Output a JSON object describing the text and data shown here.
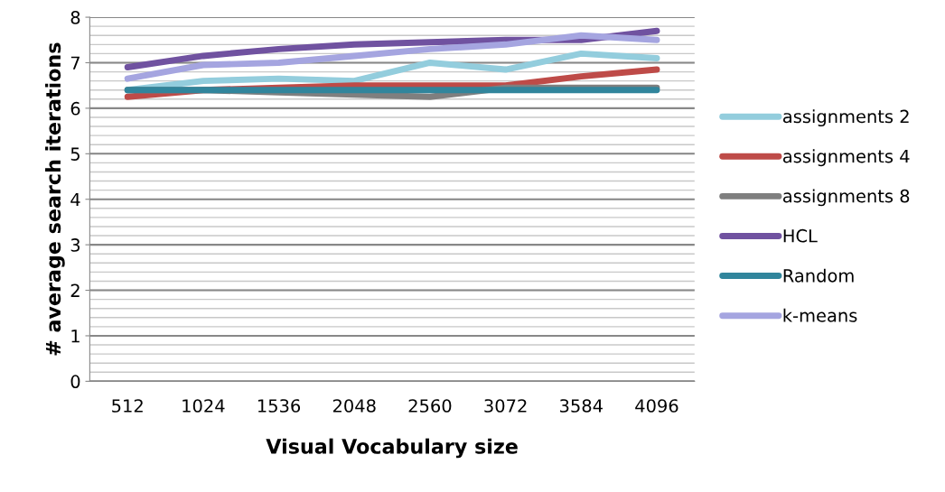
{
  "chart_data": {
    "type": "line",
    "xlabel": "Visual Vocabulary size",
    "ylabel": "# average search iterations",
    "categories": [
      "512",
      "1024",
      "1536",
      "2048",
      "2560",
      "3072",
      "3584",
      "4096"
    ],
    "ylim": [
      0,
      8
    ],
    "yticks": [
      0,
      1,
      2,
      3,
      4,
      5,
      6,
      7,
      8
    ],
    "grid": "y",
    "legend": "right",
    "marker": "none",
    "line_style": "solid",
    "series": [
      {
        "name": "assignments 2",
        "color": "#93cddd",
        "values": [
          6.4,
          6.6,
          6.65,
          6.6,
          7.0,
          6.85,
          7.2,
          7.1
        ]
      },
      {
        "name": "assignments 4",
        "color": "#be4b48",
        "values": [
          6.25,
          6.4,
          6.45,
          6.5,
          6.5,
          6.5,
          6.7,
          6.85
        ]
      },
      {
        "name": "assignments 8",
        "color": "#7f7f7f",
        "values": [
          6.4,
          6.4,
          6.35,
          6.3,
          6.25,
          6.45,
          6.45,
          6.45
        ]
      },
      {
        "name": "HCL",
        "color": "#7052a0",
        "values": [
          6.9,
          7.15,
          7.3,
          7.4,
          7.45,
          7.5,
          7.5,
          7.7
        ]
      },
      {
        "name": "Random",
        "color": "#31859c",
        "values": [
          6.4,
          6.4,
          6.4,
          6.4,
          6.4,
          6.4,
          6.4,
          6.4
        ]
      },
      {
        "name": "k-means",
        "color": "#a5a5e0",
        "values": [
          6.65,
          6.95,
          7.0,
          7.15,
          7.3,
          7.4,
          7.6,
          7.5
        ]
      }
    ]
  }
}
